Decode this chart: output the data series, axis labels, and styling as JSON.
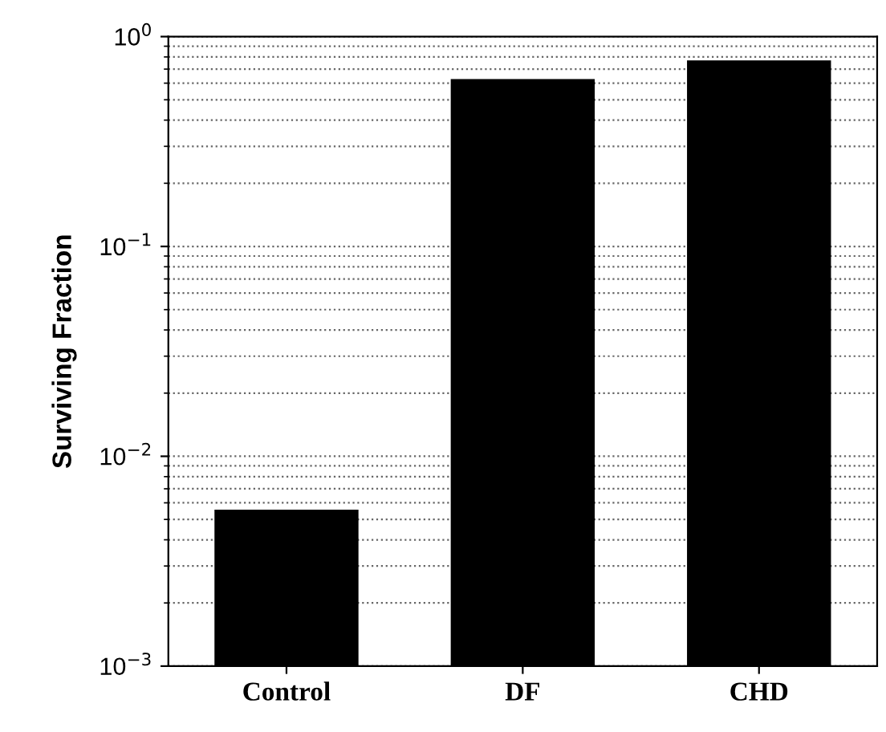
{
  "chart_data": {
    "type": "bar",
    "ylabel": "Surviving Fraction",
    "categories": [
      "Control",
      "DF",
      "CHD"
    ],
    "values": [
      0.0055,
      0.62,
      0.76
    ],
    "color": "#000000",
    "log": true,
    "ylim": [
      0.001,
      1
    ],
    "yticks": [
      {
        "value": 0.001,
        "label": "10$^{−3}$"
      },
      {
        "value": 0.01,
        "label": "10$^{−2}$"
      },
      {
        "value": 0.1,
        "label": "10$^{−1}$"
      },
      {
        "value": 1,
        "label": "10$^{0}$"
      }
    ],
    "grid": "y"
  }
}
